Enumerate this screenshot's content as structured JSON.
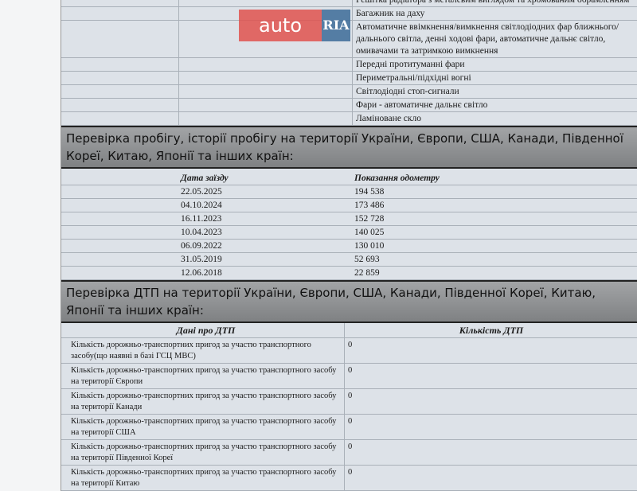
{
  "features": [
    "Решітка радіатора з металевим виглядом та хромованим обрамленням",
    "Багажник на даху",
    "Автоматичне ввімкнення/вимкнення світлодіодних фар ближнього/дальнього світла, денні ходові фари, автоматичне дальнє світло, омивачами та затримкою вимкнення",
    "Передні протитуманні фари",
    "Периметральні/підхідні вогні",
    "Світлодіодні стоп-сигнали",
    "Фари - автоматичне дальнє світло",
    "Ламіноване скло"
  ],
  "mileage": {
    "title": "Перевірка пробігу, історії пробігу на території України, Європи, США, Канади, Південної Кореї, Китаю, Японії та інших країн:",
    "headers": [
      "Дата заїзду",
      "Показання одометру"
    ],
    "rows": [
      [
        "22.05.2025",
        "194 538"
      ],
      [
        "04.10.2024",
        "173 486"
      ],
      [
        "16.11.2023",
        "152 728"
      ],
      [
        "10.04.2023",
        "140 025"
      ],
      [
        "06.09.2022",
        "130 010"
      ],
      [
        "31.05.2019",
        "52 693"
      ],
      [
        "12.06.2018",
        "22 859"
      ]
    ]
  },
  "accidents": {
    "title": "Перевірка ДТП на території України, Європи, США, Канади, Південної Кореї, Китаю, Японії та інших країн:",
    "headers": [
      "Дані про ДТП",
      "Кількість ДТП"
    ],
    "rows": [
      [
        "Кількість дорожньо-транспортних пригод за участю транспортного засобу(що наявні в базі ГСЦ МВС)",
        "0"
      ],
      [
        "Кількість дорожньо-транспортних пригод за участю транспортного засобу на території Європи",
        "0"
      ],
      [
        "Кількість дорожньо-транспортних пригод за участю транспортного засобу на території Канади",
        "0"
      ],
      [
        "Кількість дорожньо-транспортних пригод за участю транспортного засобу на території США",
        "0"
      ],
      [
        "Кількість дорожньо-транспортних пригод за участю транспортного засобу на території Південної Кореї",
        "0"
      ],
      [
        "Кількість дорожньо-транспортних пригод за участю транспортного засобу на території Китаю",
        "0"
      ]
    ]
  },
  "watermark": {
    "left": "auto",
    "right": "RIA",
    "colors": {
      "left": "#e0524e",
      "right": "#3c6b98"
    }
  }
}
